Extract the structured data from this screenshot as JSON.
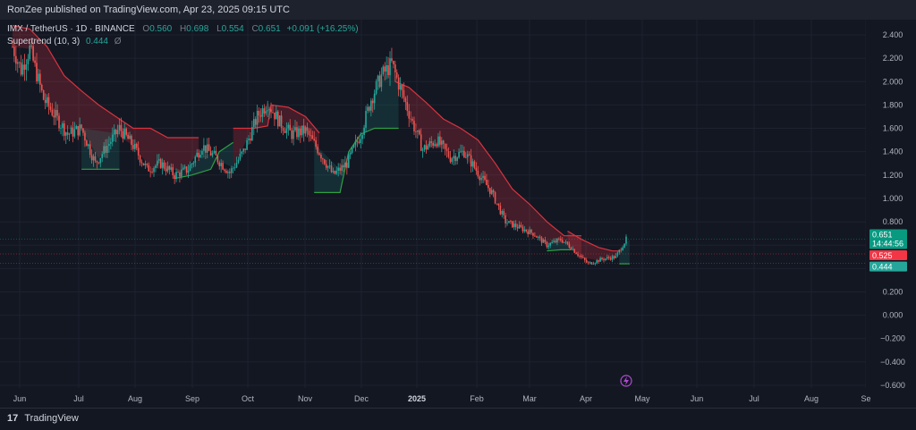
{
  "header": {
    "publish_text": "RonZee published on TradingView.com, Apr 23, 2025 09:15 UTC"
  },
  "legend": {
    "symbol": "IMX / TetherUS · 1D · BINANCE",
    "open_label": "O",
    "open_value": "0.560",
    "high_label": "H",
    "high_value": "0.698",
    "low_label": "L",
    "low_value": "0.554",
    "close_label": "C",
    "close_value": "0.651",
    "change": "+0.091 (+16.25%)",
    "indicator_name": "Supertrend (10, 3)",
    "indicator_value": "0.444",
    "indicator_icon": "Ø"
  },
  "footer": {
    "logo_text": "17",
    "brand": "TradingView"
  },
  "markers": {
    "flash_icon": "lightning-icon"
  },
  "chart_data": {
    "type": "candlestick",
    "ylim": [
      -0.6,
      2.5
    ],
    "y_ticks": [
      2.4,
      2.2,
      2.0,
      1.8,
      1.6,
      1.4,
      1.2,
      1.0,
      0.8,
      0.6,
      0.4,
      0.2,
      0.0,
      -0.2,
      -0.4,
      -0.6
    ],
    "y_tick_labels": [
      "2.400",
      "2.200",
      "2.000",
      "1.800",
      "1.600",
      "1.400",
      "1.200",
      "1.000",
      "0.800",
      "0.600",
      "0.400",
      "0.200",
      "0.000",
      "−0.200",
      "−0.400",
      "−0.600"
    ],
    "x_tick_labels": [
      "Jun",
      "Jul",
      "Aug",
      "Sep",
      "Oct",
      "Nov",
      "Dec",
      "2025",
      "Feb",
      "Mar",
      "Apr",
      "May",
      "Jun",
      "Jul",
      "Aug",
      "Se"
    ],
    "price_badges": [
      {
        "label": "0.651",
        "sub": "14:44:56",
        "value": 0.651,
        "color": "#089981"
      },
      {
        "label": "0.525",
        "value": 0.525,
        "color": "#f23645"
      },
      {
        "label": "0.444",
        "value": 0.444,
        "color": "#26a69a"
      }
    ],
    "candle_count": 330,
    "close_path": [
      [
        0,
        2.3
      ],
      [
        5,
        2.1
      ],
      [
        10,
        2.28
      ],
      [
        18,
        1.85
      ],
      [
        25,
        1.7
      ],
      [
        32,
        1.55
      ],
      [
        40,
        1.6
      ],
      [
        48,
        1.3
      ],
      [
        55,
        1.45
      ],
      [
        62,
        1.6
      ],
      [
        70,
        1.45
      ],
      [
        78,
        1.25
      ],
      [
        86,
        1.3
      ],
      [
        94,
        1.2
      ],
      [
        102,
        1.25
      ],
      [
        110,
        1.45
      ],
      [
        118,
        1.35
      ],
      [
        126,
        1.22
      ],
      [
        134,
        1.4
      ],
      [
        142,
        1.7
      ],
      [
        148,
        1.82
      ],
      [
        155,
        1.65
      ],
      [
        162,
        1.55
      ],
      [
        170,
        1.58
      ],
      [
        178,
        1.4
      ],
      [
        186,
        1.2
      ],
      [
        194,
        1.3
      ],
      [
        202,
        1.55
      ],
      [
        208,
        1.85
      ],
      [
        214,
        2.05
      ],
      [
        220,
        2.15
      ],
      [
        226,
        1.9
      ],
      [
        232,
        1.65
      ],
      [
        238,
        1.42
      ],
      [
        246,
        1.5
      ],
      [
        254,
        1.35
      ],
      [
        262,
        1.4
      ],
      [
        270,
        1.22
      ],
      [
        278,
        1.05
      ],
      [
        286,
        0.8
      ],
      [
        294,
        0.75
      ],
      [
        302,
        0.7
      ],
      [
        310,
        0.6
      ],
      [
        318,
        0.65
      ],
      [
        324,
        0.58
      ],
      [
        328,
        0.52
      ],
      [
        334,
        0.44
      ],
      [
        342,
        0.48
      ],
      [
        350,
        0.5
      ],
      [
        356,
        0.65
      ]
    ],
    "supertrend_segments": [
      {
        "trend": "down",
        "points": [
          [
            0,
            2.48
          ],
          [
            10,
            2.45
          ],
          [
            20,
            2.3
          ],
          [
            30,
            2.05
          ],
          [
            40,
            1.92
          ],
          [
            50,
            1.8
          ],
          [
            60,
            1.7
          ],
          [
            70,
            1.6
          ],
          [
            80,
            1.6
          ],
          [
            90,
            1.52
          ],
          [
            100,
            1.52
          ],
          [
            108,
            1.52
          ]
        ]
      },
      {
        "trend": "up",
        "points": [
          [
            40,
            1.25
          ],
          [
            60,
            1.25
          ],
          [
            62,
            1.25
          ]
        ]
      },
      {
        "trend": "up",
        "points": [
          [
            94,
            1.17
          ],
          [
            104,
            1.2
          ],
          [
            115,
            1.25
          ],
          [
            120,
            1.4
          ],
          [
            128,
            1.48
          ]
        ]
      },
      {
        "trend": "down",
        "points": [
          [
            128,
            1.6
          ],
          [
            140,
            1.6
          ],
          [
            148,
            1.62
          ],
          [
            150,
            1.8
          ],
          [
            160,
            1.78
          ],
          [
            170,
            1.7
          ],
          [
            178,
            1.56
          ]
        ]
      },
      {
        "trend": "up",
        "points": [
          [
            175,
            1.05
          ],
          [
            190,
            1.05
          ],
          [
            195,
            1.4
          ],
          [
            202,
            1.55
          ],
          [
            210,
            1.6
          ],
          [
            220,
            1.6
          ],
          [
            224,
            1.6
          ]
        ]
      },
      {
        "trend": "down",
        "points": [
          [
            222,
            2.0
          ],
          [
            230,
            1.95
          ],
          [
            240,
            1.82
          ],
          [
            250,
            1.68
          ],
          [
            260,
            1.6
          ],
          [
            270,
            1.5
          ],
          [
            280,
            1.3
          ],
          [
            290,
            1.08
          ],
          [
            300,
            0.95
          ],
          [
            310,
            0.8
          ],
          [
            320,
            0.68
          ],
          [
            330,
            0.68
          ]
        ]
      },
      {
        "trend": "up",
        "points": [
          [
            310,
            0.55
          ],
          [
            318,
            0.56
          ],
          [
            324,
            0.56
          ]
        ]
      },
      {
        "trend": "down",
        "points": [
          [
            322,
            0.72
          ],
          [
            330,
            0.65
          ],
          [
            340,
            0.58
          ],
          [
            348,
            0.55
          ],
          [
            352,
            0.55
          ]
        ]
      },
      {
        "trend": "up",
        "points": [
          [
            352,
            0.44
          ],
          [
            358,
            0.44
          ]
        ]
      }
    ]
  }
}
